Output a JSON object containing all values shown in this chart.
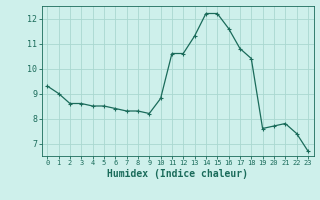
{
  "x": [
    0,
    1,
    2,
    3,
    4,
    5,
    6,
    7,
    8,
    9,
    10,
    11,
    12,
    13,
    14,
    15,
    16,
    17,
    18,
    19,
    20,
    21,
    22,
    23
  ],
  "y": [
    9.3,
    9.0,
    8.6,
    8.6,
    8.5,
    8.5,
    8.4,
    8.3,
    8.3,
    8.2,
    8.8,
    10.6,
    10.6,
    11.3,
    12.2,
    12.2,
    11.6,
    10.8,
    10.4,
    7.6,
    7.7,
    7.8,
    7.4,
    6.7
  ],
  "line_color": "#1a6b5a",
  "marker": "P",
  "marker_size": 2.5,
  "bg_color": "#cef0eb",
  "grid_color": "#aad8d0",
  "xlabel": "Humidex (Indice chaleur)",
  "xlabel_fontsize": 7,
  "xlim": [
    -0.5,
    23.5
  ],
  "ylim": [
    6.5,
    12.5
  ],
  "yticks": [
    7,
    8,
    9,
    10,
    11,
    12
  ],
  "xticks": [
    0,
    1,
    2,
    3,
    4,
    5,
    6,
    7,
    8,
    9,
    10,
    11,
    12,
    13,
    14,
    15,
    16,
    17,
    18,
    19,
    20,
    21,
    22,
    23
  ],
  "xtick_fontsize": 5,
  "ytick_fontsize": 6,
  "line_width": 0.9
}
